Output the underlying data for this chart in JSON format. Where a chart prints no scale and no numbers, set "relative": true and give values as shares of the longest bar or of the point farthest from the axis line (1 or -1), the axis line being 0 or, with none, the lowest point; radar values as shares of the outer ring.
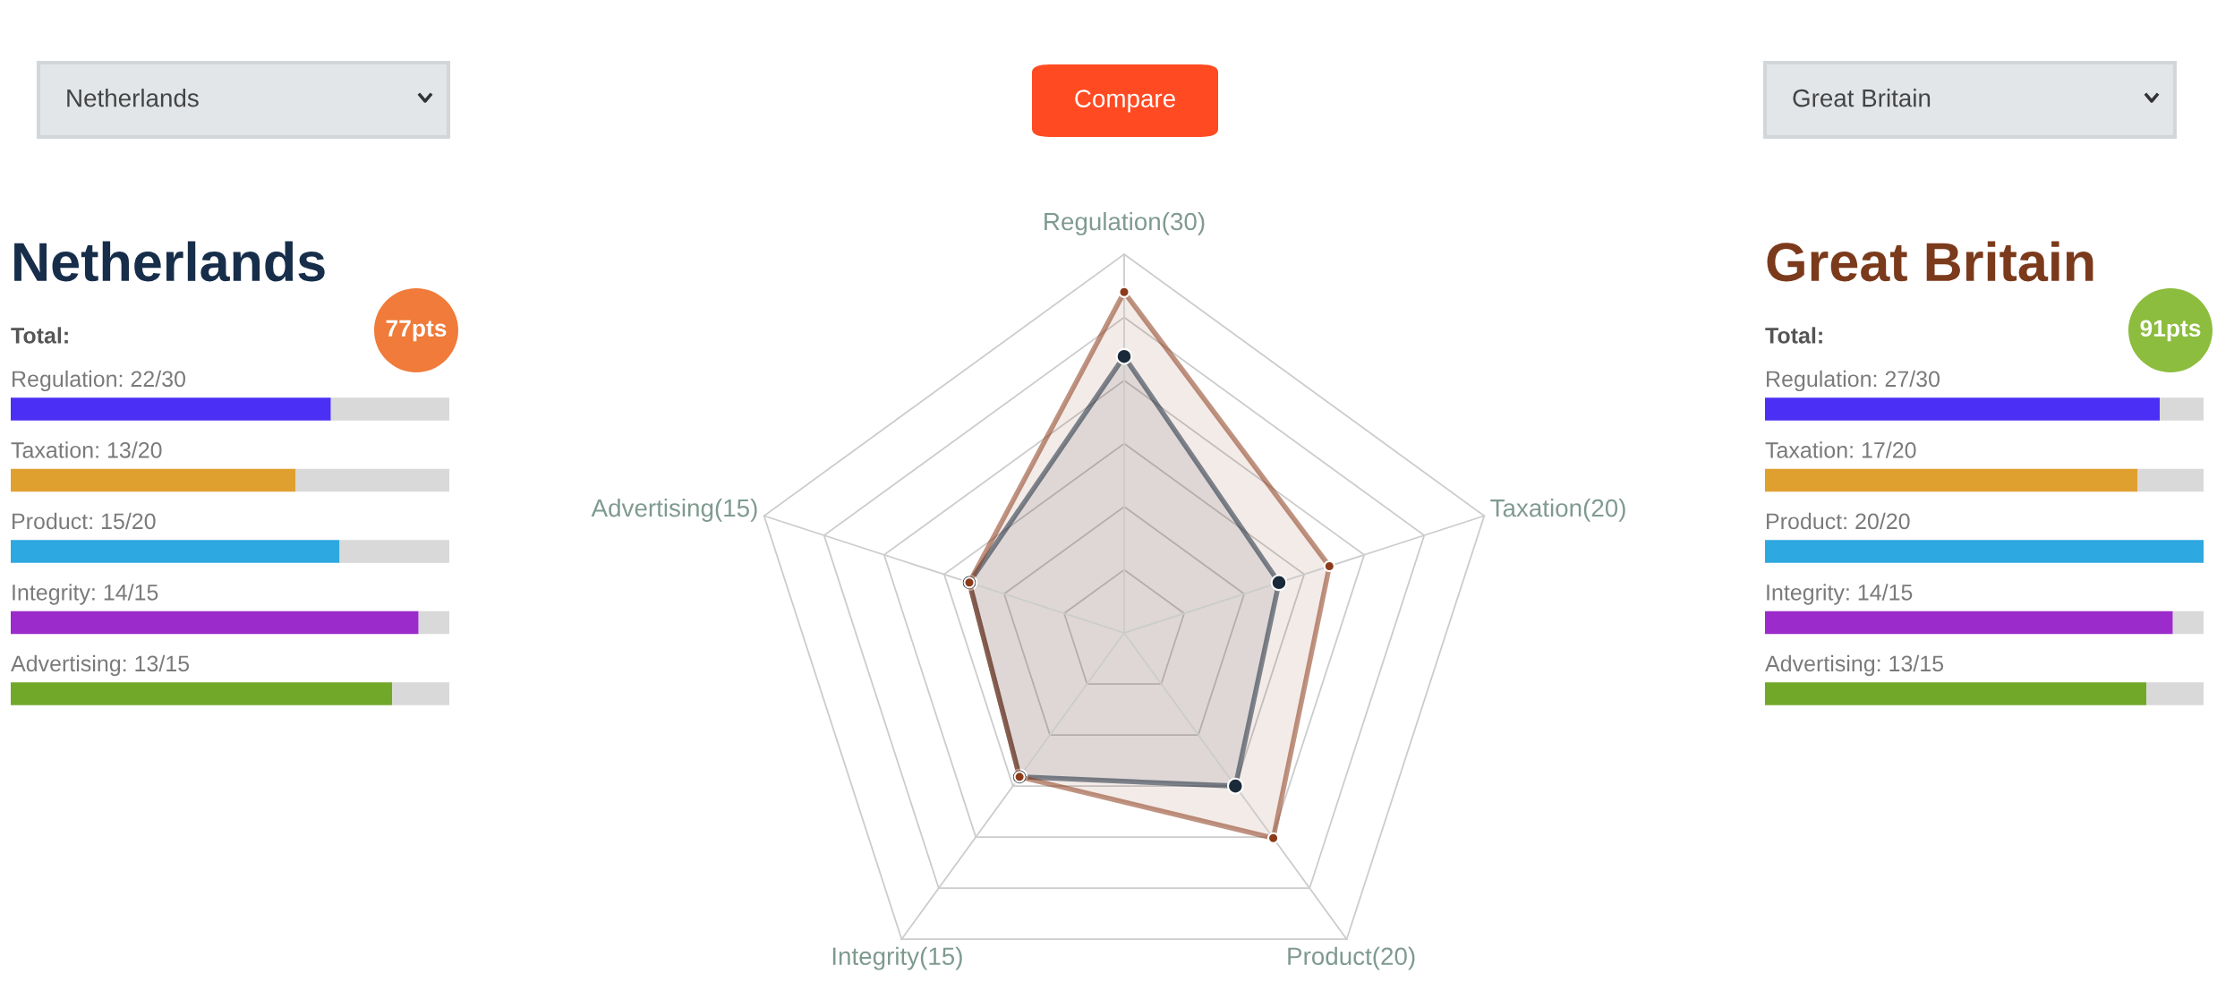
{
  "chart_data": [
    {
      "type": "bar",
      "orientation": "horizontal",
      "stacked": true,
      "relative": true,
      "title": "Netherlands",
      "categories": [
        "Regulation: 22/30",
        "Taxation: 13/20",
        "Product: 15/20",
        "Integrity: 14/15",
        "Advertising: 13/15"
      ],
      "series": [
        {
          "colors": [
            "#4b2ff5",
            "#e0a030",
            "#2ea8e0",
            "#9b2bcb",
            "#72a82a"
          ],
          "values": [
            0.73,
            0.65,
            0.75,
            0.93,
            0.87
          ]
        },
        {
          "color": "#d9d9d9",
          "values": [
            0.27,
            0.35,
            0.25,
            0.07,
            0.13
          ]
        }
      ],
      "annotations": [
        "Netherlands",
        "Total:",
        "77pts"
      ]
    },
    {
      "type": "radar",
      "relative": true,
      "categories": [
        "Regulation(30)",
        "Taxation(20)",
        "Product(20)",
        "Integrity(15)",
        "Advertising(15)"
      ],
      "marker": "circle",
      "series": [
        {
          "color": "#1b2a3a",
          "values": [
            0.73,
            0.43,
            0.5,
            0.47,
            0.43
          ]
        },
        {
          "color": "#8b3a1a",
          "values": [
            0.9,
            0.57,
            0.67,
            0.47,
            0.43
          ]
        }
      ],
      "annotations": [
        "Compare"
      ]
    },
    {
      "type": "bar",
      "orientation": "horizontal",
      "stacked": true,
      "relative": true,
      "title": "Great Britain",
      "categories": [
        "Regulation: 27/30",
        "Taxation: 17/20",
        "Product: 20/20",
        "Integrity: 14/15",
        "Advertising: 13/15"
      ],
      "series": [
        {
          "colors": [
            "#4b2ff5",
            "#e0a030",
            "#2ea8e0",
            "#9b2bcb",
            "#72a82a"
          ],
          "values": [
            0.9,
            0.85,
            1,
            0.93,
            0.87
          ]
        },
        {
          "color": "#d9d9d9",
          "values": [
            0.1,
            0.15,
            0,
            0.07,
            0.13
          ]
        }
      ],
      "annotations": [
        "Great Britain",
        "Total:",
        "91pts"
      ]
    }
  ]
}
